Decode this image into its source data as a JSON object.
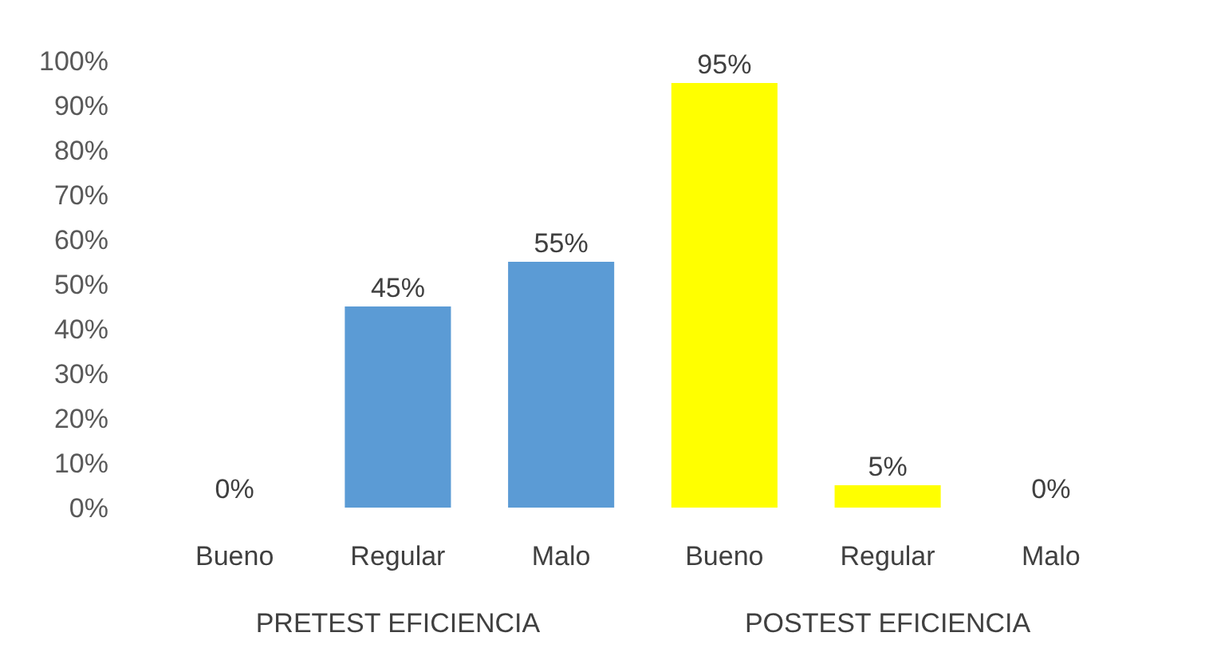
{
  "chart_data": {
    "type": "bar",
    "categories": [
      "Bueno",
      "Regular",
      "Malo",
      "Bueno",
      "Regular",
      "Malo"
    ],
    "values": [
      0,
      45,
      55,
      95,
      5,
      0
    ],
    "colors": [
      "#5b9bd5",
      "#5b9bd5",
      "#5b9bd5",
      "#ffff00",
      "#ffff00",
      "#ffff00"
    ],
    "value_labels": [
      "0%",
      "45%",
      "55%",
      "95%",
      "5%",
      "0%"
    ],
    "ylim": [
      0,
      100
    ],
    "yticks": [
      {
        "value": 0,
        "label": "0%"
      },
      {
        "value": 10,
        "label": "10%"
      },
      {
        "value": 20,
        "label": "20%"
      },
      {
        "value": 30,
        "label": "30%"
      },
      {
        "value": 40,
        "label": "40%"
      },
      {
        "value": 50,
        "label": "50%"
      },
      {
        "value": 60,
        "label": "60%"
      },
      {
        "value": 70,
        "label": "70%"
      },
      {
        "value": 80,
        "label": "80%"
      },
      {
        "value": 90,
        "label": "90%"
      },
      {
        "value": 100,
        "label": "100%"
      }
    ],
    "annotations": [
      "PRETEST EFICIENCIA",
      "POSTEST EFICIENCIA"
    ],
    "grid": false
  }
}
